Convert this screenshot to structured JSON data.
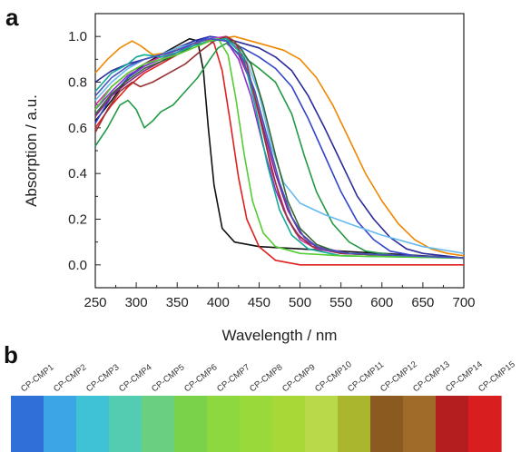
{
  "panels": {
    "a": "a",
    "b": "b"
  },
  "chart_data": {
    "type": "line",
    "title": "",
    "xlabel": "Wavelength / nm",
    "ylabel": "Absorption / a.u.",
    "xlim": [
      250,
      700
    ],
    "ylim": [
      -0.1,
      1.1
    ],
    "xticks": [
      250,
      300,
      350,
      400,
      450,
      500,
      550,
      600,
      650,
      700
    ],
    "yticks": [
      "0.0",
      "0.2",
      "0.4",
      "0.6",
      "0.8",
      "1.0"
    ],
    "grid": false,
    "series": [
      {
        "color": "#111111",
        "points": [
          [
            250,
            0.63
          ],
          [
            270,
            0.72
          ],
          [
            290,
            0.82
          ],
          [
            310,
            0.88
          ],
          [
            330,
            0.92
          ],
          [
            350,
            0.96
          ],
          [
            365,
            0.99
          ],
          [
            375,
            0.98
          ],
          [
            382,
            0.85
          ],
          [
            388,
            0.6
          ],
          [
            395,
            0.35
          ],
          [
            405,
            0.16
          ],
          [
            420,
            0.1
          ],
          [
            450,
            0.08
          ],
          [
            500,
            0.07
          ],
          [
            550,
            0.06
          ],
          [
            600,
            0.05
          ],
          [
            650,
            0.04
          ],
          [
            700,
            0.03
          ]
        ]
      },
      {
        "color": "#e02020",
        "points": [
          [
            250,
            0.6
          ],
          [
            270,
            0.7
          ],
          [
            290,
            0.78
          ],
          [
            310,
            0.84
          ],
          [
            330,
            0.88
          ],
          [
            350,
            0.92
          ],
          [
            370,
            0.96
          ],
          [
            385,
            0.99
          ],
          [
            395,
            0.97
          ],
          [
            405,
            0.85
          ],
          [
            415,
            0.62
          ],
          [
            425,
            0.38
          ],
          [
            435,
            0.2
          ],
          [
            450,
            0.08
          ],
          [
            470,
            0.02
          ],
          [
            500,
            0.0
          ],
          [
            600,
            0.0
          ],
          [
            700,
            0.0
          ]
        ]
      },
      {
        "color": "#ee8800",
        "points": [
          [
            250,
            0.84
          ],
          [
            265,
            0.9
          ],
          [
            280,
            0.95
          ],
          [
            295,
            0.98
          ],
          [
            305,
            0.96
          ],
          [
            320,
            0.92
          ],
          [
            340,
            0.93
          ],
          [
            360,
            0.96
          ],
          [
            380,
            0.98
          ],
          [
            400,
            0.99
          ],
          [
            420,
            1.0
          ],
          [
            440,
            0.98
          ],
          [
            460,
            0.96
          ],
          [
            480,
            0.94
          ],
          [
            500,
            0.9
          ],
          [
            520,
            0.82
          ],
          [
            540,
            0.7
          ],
          [
            560,
            0.55
          ],
          [
            580,
            0.4
          ],
          [
            600,
            0.28
          ],
          [
            620,
            0.18
          ],
          [
            640,
            0.11
          ],
          [
            660,
            0.07
          ],
          [
            680,
            0.05
          ],
          [
            700,
            0.04
          ]
        ]
      },
      {
        "color": "#2a2a9a",
        "points": [
          [
            250,
            0.8
          ],
          [
            270,
            0.85
          ],
          [
            290,
            0.88
          ],
          [
            310,
            0.9
          ],
          [
            330,
            0.92
          ],
          [
            350,
            0.95
          ],
          [
            370,
            0.98
          ],
          [
            390,
            1.0
          ],
          [
            410,
            0.99
          ],
          [
            430,
            0.97
          ],
          [
            450,
            0.95
          ],
          [
            470,
            0.91
          ],
          [
            490,
            0.85
          ],
          [
            510,
            0.74
          ],
          [
            530,
            0.6
          ],
          [
            550,
            0.45
          ],
          [
            570,
            0.3
          ],
          [
            590,
            0.2
          ],
          [
            610,
            0.12
          ],
          [
            630,
            0.07
          ],
          [
            650,
            0.05
          ],
          [
            700,
            0.03
          ]
        ]
      },
      {
        "color": "#229944",
        "points": [
          [
            250,
            0.52
          ],
          [
            265,
            0.6
          ],
          [
            280,
            0.7
          ],
          [
            290,
            0.72
          ],
          [
            300,
            0.68
          ],
          [
            310,
            0.6
          ],
          [
            320,
            0.63
          ],
          [
            330,
            0.67
          ],
          [
            345,
            0.7
          ],
          [
            360,
            0.76
          ],
          [
            375,
            0.82
          ],
          [
            390,
            0.9
          ],
          [
            400,
            0.95
          ],
          [
            410,
            0.97
          ],
          [
            420,
            0.94
          ],
          [
            435,
            0.9
          ],
          [
            450,
            0.86
          ],
          [
            470,
            0.8
          ],
          [
            490,
            0.66
          ],
          [
            505,
            0.48
          ],
          [
            520,
            0.32
          ],
          [
            540,
            0.18
          ],
          [
            560,
            0.1
          ],
          [
            580,
            0.06
          ],
          [
            620,
            0.04
          ],
          [
            700,
            0.03
          ]
        ]
      },
      {
        "color": "#3344cc",
        "points": [
          [
            250,
            0.62
          ],
          [
            270,
            0.74
          ],
          [
            290,
            0.82
          ],
          [
            310,
            0.87
          ],
          [
            330,
            0.9
          ],
          [
            350,
            0.93
          ],
          [
            370,
            0.97
          ],
          [
            390,
            1.0
          ],
          [
            410,
            0.98
          ],
          [
            430,
            0.95
          ],
          [
            450,
            0.91
          ],
          [
            470,
            0.86
          ],
          [
            490,
            0.78
          ],
          [
            510,
            0.64
          ],
          [
            530,
            0.48
          ],
          [
            550,
            0.32
          ],
          [
            570,
            0.19
          ],
          [
            590,
            0.11
          ],
          [
            610,
            0.06
          ],
          [
            640,
            0.04
          ],
          [
            700,
            0.03
          ]
        ]
      },
      {
        "color": "#882288",
        "points": [
          [
            250,
            0.65
          ],
          [
            270,
            0.74
          ],
          [
            290,
            0.8
          ],
          [
            310,
            0.85
          ],
          [
            330,
            0.89
          ],
          [
            350,
            0.93
          ],
          [
            370,
            0.97
          ],
          [
            390,
            0.99
          ],
          [
            410,
            0.98
          ],
          [
            425,
            0.92
          ],
          [
            440,
            0.8
          ],
          [
            455,
            0.6
          ],
          [
            470,
            0.4
          ],
          [
            485,
            0.24
          ],
          [
            500,
            0.14
          ],
          [
            520,
            0.08
          ],
          [
            550,
            0.05
          ],
          [
            700,
            0.03
          ]
        ]
      },
      {
        "color": "#cc33aa",
        "points": [
          [
            250,
            0.7
          ],
          [
            270,
            0.78
          ],
          [
            290,
            0.84
          ],
          [
            310,
            0.88
          ],
          [
            330,
            0.91
          ],
          [
            350,
            0.94
          ],
          [
            370,
            0.97
          ],
          [
            390,
            0.99
          ],
          [
            410,
            1.0
          ],
          [
            425,
            0.94
          ],
          [
            440,
            0.8
          ],
          [
            455,
            0.58
          ],
          [
            470,
            0.36
          ],
          [
            485,
            0.2
          ],
          [
            500,
            0.11
          ],
          [
            520,
            0.07
          ],
          [
            550,
            0.05
          ],
          [
            700,
            0.03
          ]
        ]
      },
      {
        "color": "#66bbee",
        "points": [
          [
            250,
            0.72
          ],
          [
            270,
            0.8
          ],
          [
            290,
            0.86
          ],
          [
            310,
            0.9
          ],
          [
            330,
            0.92
          ],
          [
            350,
            0.95
          ],
          [
            370,
            0.97
          ],
          [
            390,
            0.99
          ],
          [
            410,
            0.99
          ],
          [
            430,
            0.94
          ],
          [
            450,
            0.75
          ],
          [
            465,
            0.52
          ],
          [
            480,
            0.36
          ],
          [
            500,
            0.27
          ],
          [
            530,
            0.22
          ],
          [
            560,
            0.18
          ],
          [
            600,
            0.13
          ],
          [
            650,
            0.08
          ],
          [
            700,
            0.05
          ]
        ]
      },
      {
        "color": "#8833cc",
        "points": [
          [
            250,
            0.68
          ],
          [
            270,
            0.76
          ],
          [
            290,
            0.83
          ],
          [
            310,
            0.87
          ],
          [
            330,
            0.9
          ],
          [
            350,
            0.93
          ],
          [
            370,
            0.97
          ],
          [
            390,
            0.99
          ],
          [
            410,
            0.98
          ],
          [
            425,
            0.9
          ],
          [
            440,
            0.74
          ],
          [
            455,
            0.52
          ],
          [
            470,
            0.33
          ],
          [
            485,
            0.2
          ],
          [
            500,
            0.12
          ],
          [
            520,
            0.08
          ],
          [
            560,
            0.05
          ],
          [
            700,
            0.03
          ]
        ]
      },
      {
        "color": "#336633",
        "points": [
          [
            250,
            0.66
          ],
          [
            270,
            0.75
          ],
          [
            290,
            0.81
          ],
          [
            310,
            0.86
          ],
          [
            330,
            0.89
          ],
          [
            350,
            0.92
          ],
          [
            370,
            0.96
          ],
          [
            390,
            0.98
          ],
          [
            410,
            0.99
          ],
          [
            425,
            0.96
          ],
          [
            440,
            0.88
          ],
          [
            455,
            0.7
          ],
          [
            470,
            0.48
          ],
          [
            485,
            0.28
          ],
          [
            500,
            0.16
          ],
          [
            520,
            0.09
          ],
          [
            550,
            0.05
          ],
          [
            700,
            0.03
          ]
        ]
      },
      {
        "color": "#993333",
        "points": [
          [
            250,
            0.58
          ],
          [
            265,
            0.68
          ],
          [
            280,
            0.76
          ],
          [
            295,
            0.8
          ],
          [
            305,
            0.78
          ],
          [
            320,
            0.8
          ],
          [
            340,
            0.84
          ],
          [
            360,
            0.88
          ],
          [
            380,
            0.94
          ],
          [
            395,
            0.98
          ],
          [
            410,
            1.0
          ],
          [
            420,
            0.98
          ],
          [
            435,
            0.88
          ],
          [
            450,
            0.66
          ],
          [
            465,
            0.42
          ],
          [
            480,
            0.24
          ],
          [
            495,
            0.14
          ],
          [
            515,
            0.08
          ],
          [
            550,
            0.05
          ],
          [
            700,
            0.03
          ]
        ]
      },
      {
        "color": "#11aa99",
        "points": [
          [
            250,
            0.76
          ],
          [
            270,
            0.84
          ],
          [
            290,
            0.88
          ],
          [
            300,
            0.91
          ],
          [
            310,
            0.92
          ],
          [
            330,
            0.91
          ],
          [
            350,
            0.93
          ],
          [
            370,
            0.96
          ],
          [
            390,
            0.98
          ],
          [
            410,
            0.99
          ],
          [
            430,
            0.92
          ],
          [
            445,
            0.7
          ],
          [
            460,
            0.44
          ],
          [
            475,
            0.24
          ],
          [
            490,
            0.13
          ],
          [
            510,
            0.07
          ],
          [
            550,
            0.04
          ],
          [
            700,
            0.03
          ]
        ]
      },
      {
        "color": "#55cc33",
        "points": [
          [
            250,
            0.68
          ],
          [
            270,
            0.78
          ],
          [
            290,
            0.84
          ],
          [
            310,
            0.88
          ],
          [
            330,
            0.9
          ],
          [
            350,
            0.92
          ],
          [
            370,
            0.95
          ],
          [
            390,
            0.98
          ],
          [
            400,
            0.99
          ],
          [
            412,
            0.92
          ],
          [
            422,
            0.72
          ],
          [
            432,
            0.48
          ],
          [
            442,
            0.28
          ],
          [
            455,
            0.14
          ],
          [
            470,
            0.08
          ],
          [
            500,
            0.05
          ],
          [
            550,
            0.04
          ],
          [
            700,
            0.03
          ]
        ]
      },
      {
        "color": "#4455bb",
        "points": [
          [
            250,
            0.74
          ],
          [
            270,
            0.82
          ],
          [
            290,
            0.87
          ],
          [
            310,
            0.9
          ],
          [
            330,
            0.92
          ],
          [
            350,
            0.94
          ],
          [
            370,
            0.97
          ],
          [
            390,
            0.99
          ],
          [
            410,
            0.98
          ],
          [
            430,
            0.9
          ],
          [
            445,
            0.76
          ],
          [
            460,
            0.56
          ],
          [
            475,
            0.36
          ],
          [
            490,
            0.21
          ],
          [
            505,
            0.12
          ],
          [
            525,
            0.07
          ],
          [
            560,
            0.05
          ],
          [
            700,
            0.03
          ]
        ]
      }
    ],
    "samples": [
      "CP-CMP1",
      "CP-CMP2",
      "CP-CMP3",
      "CP-CMP4",
      "CP-CMP5",
      "CP-CMP6",
      "CP-CMP7",
      "CP-CMP8",
      "CP-CMP9",
      "CP-CMP10",
      "CP-CMP11",
      "CP-CMP12",
      "CP-CMP13",
      "CP-CMP14",
      "CP-CMP15"
    ],
    "sample_colors": [
      "#2f6fd8",
      "#3aa6e6",
      "#3fc1d6",
      "#52cdb2",
      "#6ad07f",
      "#79d24a",
      "#8ed83f",
      "#9ad93a",
      "#a7d838",
      "#b8d94a",
      "#a9b62e",
      "#8a5a20",
      "#a06a28",
      "#b51e1e",
      "#d81e1e"
    ]
  }
}
